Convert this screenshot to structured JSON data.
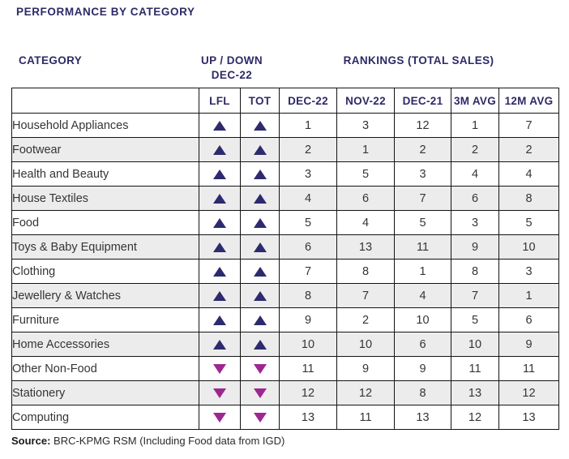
{
  "page": {
    "title": "PERFORMANCE BY CATEGORY",
    "source_label": "Source:",
    "source_text": " BRC-KPMG RSM (Including Food data from IGD)"
  },
  "group_headers": {
    "category": "CATEGORY",
    "updown_line1": "UP / DOWN",
    "updown_line2": "DEC-22",
    "rankings": "RANKINGS (TOTAL SALES)"
  },
  "chart_data": {
    "type": "table",
    "title": "PERFORMANCE BY CATEGORY",
    "trend_columns": [
      "LFL",
      "TOT"
    ],
    "ranking_columns": [
      "DEC-22",
      "NOV-22",
      "DEC-21",
      "3M AVG",
      "12M AVG"
    ],
    "rows": [
      {
        "category": "Household Appliances",
        "lfl": "up",
        "tot": "up",
        "values": [
          1,
          3,
          12,
          1,
          7
        ]
      },
      {
        "category": "Footwear",
        "lfl": "up",
        "tot": "up",
        "values": [
          2,
          1,
          2,
          2,
          2
        ]
      },
      {
        "category": "Health and Beauty",
        "lfl": "up",
        "tot": "up",
        "values": [
          3,
          5,
          3,
          4,
          4
        ]
      },
      {
        "category": "House Textiles",
        "lfl": "up",
        "tot": "up",
        "values": [
          4,
          6,
          7,
          6,
          8
        ]
      },
      {
        "category": "Food",
        "lfl": "up",
        "tot": "up",
        "values": [
          5,
          4,
          5,
          3,
          5
        ]
      },
      {
        "category": "Toys & Baby Equipment",
        "lfl": "up",
        "tot": "up",
        "values": [
          6,
          13,
          11,
          9,
          10
        ]
      },
      {
        "category": "Clothing",
        "lfl": "up",
        "tot": "up",
        "values": [
          7,
          8,
          1,
          8,
          3
        ]
      },
      {
        "category": "Jewellery & Watches",
        "lfl": "up",
        "tot": "up",
        "values": [
          8,
          7,
          4,
          7,
          1
        ]
      },
      {
        "category": "Furniture",
        "lfl": "up",
        "tot": "up",
        "values": [
          9,
          2,
          10,
          5,
          6
        ]
      },
      {
        "category": "Home Accessories",
        "lfl": "up",
        "tot": "up",
        "values": [
          10,
          10,
          6,
          10,
          9
        ]
      },
      {
        "category": "Other Non-Food",
        "lfl": "down",
        "tot": "down",
        "values": [
          11,
          9,
          9,
          11,
          11
        ]
      },
      {
        "category": "Stationery",
        "lfl": "down",
        "tot": "down",
        "values": [
          12,
          12,
          8,
          13,
          12
        ]
      },
      {
        "category": "Computing",
        "lfl": "down",
        "tot": "down",
        "values": [
          13,
          11,
          13,
          12,
          13
        ]
      }
    ],
    "source": "Source: BRC-KPMG RSM (Including Food data from IGD)"
  },
  "colors": {
    "heading_navy": "#2e2a66",
    "up_triangle": "#2e2a6e",
    "down_triangle": "#9e2690",
    "alt_row_bg": "#ececec",
    "border": "#141414"
  }
}
